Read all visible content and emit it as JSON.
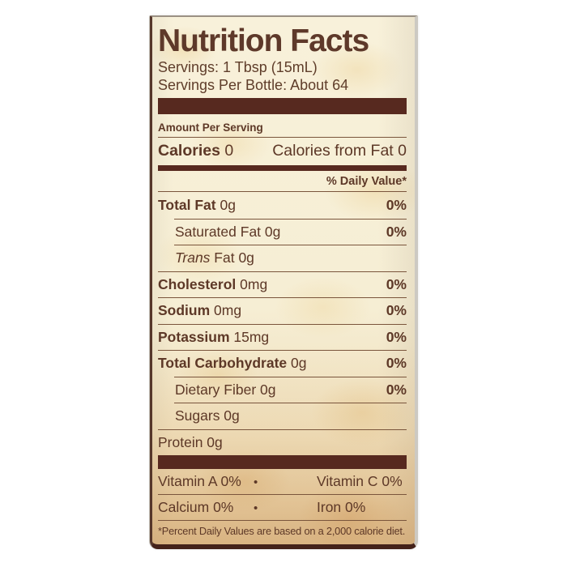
{
  "label": {
    "title": "Nutrition Facts",
    "serving_size_line": "Servings: 1 Tbsp (15mL)",
    "servings_per_bottle_line": "Servings Per Bottle: About 64",
    "amount_per_serving": "Amount Per Serving",
    "calories": {
      "label": "Calories",
      "value": " 0",
      "from_fat": "Calories from Fat 0"
    },
    "daily_value_header": "% Daily Value*",
    "rows": [
      {
        "bold": "Total Fat",
        "rest": " 0g",
        "dv": "0%"
      },
      {
        "rest": "Saturated Fat 0g",
        "dv": "0%"
      },
      {
        "italic": "Trans",
        "rest": " Fat 0g",
        "dv": ""
      },
      {
        "bold": "Cholesterol",
        "rest": " 0mg",
        "dv": "0%"
      },
      {
        "bold": "Sodium",
        "rest": " 0mg",
        "dv": "0%"
      },
      {
        "bold": "Potassium",
        "rest": " 15mg",
        "dv": "0%"
      },
      {
        "bold": "Total Carbohydrate",
        "rest": " 0g",
        "dv": "0%"
      },
      {
        "rest": "Dietary Fiber 0g",
        "dv": "0%"
      },
      {
        "rest": "Sugars 0g",
        "dv": ""
      },
      {
        "rest": "Protein 0g",
        "dv": ""
      }
    ],
    "bullet": "•",
    "micronutrients": [
      {
        "left": "Vitamin A 0%",
        "right": "Vitamin C 0%"
      },
      {
        "left": "Calcium 0%",
        "right": "Iron 0%"
      }
    ],
    "footnote": "*Percent Daily Values are based on a 2,000 calorie diet.",
    "colors": {
      "text_brown": "#5d3827",
      "bar_brown": "#57291f",
      "parchment": "#f6eed4",
      "parchment_bottom": "#e6cda2",
      "page_background": "#ffffff"
    }
  }
}
